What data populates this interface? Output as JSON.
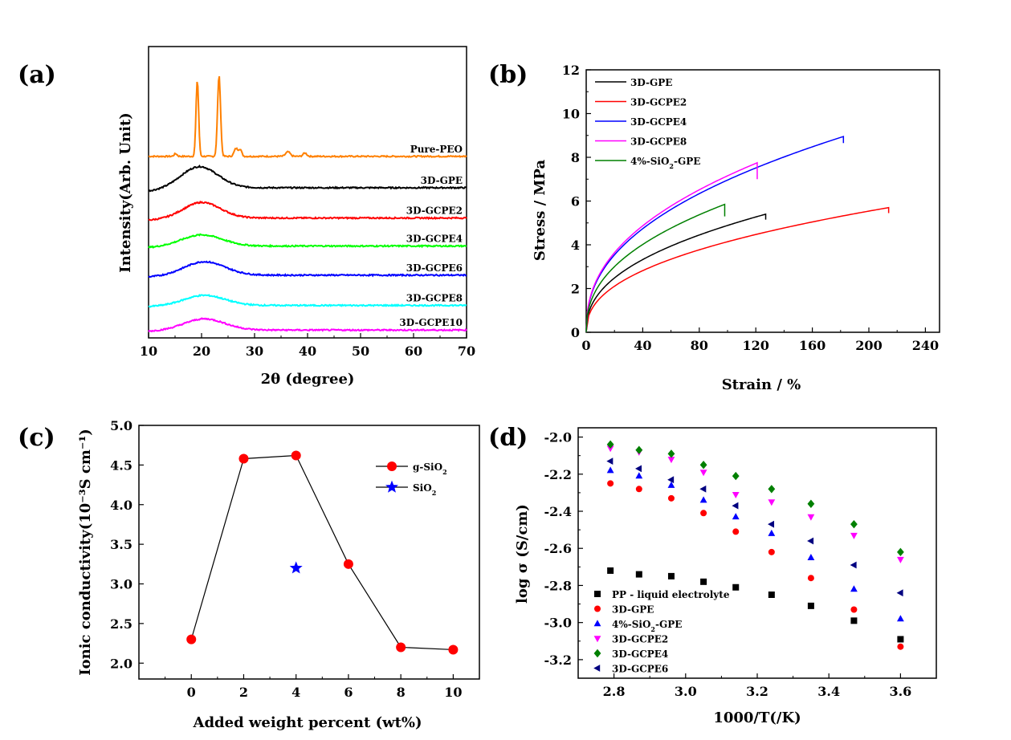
{
  "chart_data": [
    {
      "id": "a",
      "panel_label": "(a)",
      "type": "line",
      "xlabel": "2θ (degree)",
      "ylabel": "Intensity(Arb. Unit)",
      "xlim": [
        10,
        70
      ],
      "xticks": [
        "10",
        "20",
        "30",
        "40",
        "50",
        "60",
        "70"
      ],
      "ylim": [
        0,
        13
      ],
      "series": [
        {
          "name": "Pure-PEO",
          "color": "#ff8000",
          "baseline": 8.1,
          "peaks": [
            [
              19.2,
              3.4,
              0.35
            ],
            [
              23.3,
              3.6,
              0.4
            ],
            [
              26.5,
              0.35,
              0.5
            ],
            [
              27.3,
              0.3,
              0.4
            ],
            [
              15.1,
              0.12,
              0.4
            ],
            [
              36.3,
              0.2,
              0.6
            ],
            [
              39.5,
              0.15,
              0.5
            ]
          ],
          "hump": [
            0,
            20,
            6
          ],
          "tail": 0
        },
        {
          "name": "3D-GPE",
          "color": "#000000",
          "baseline": 6.7,
          "hump": [
            0.95,
            19.5,
            5.0
          ],
          "ramp": [
            10,
            0.55
          ]
        },
        {
          "name": "3D-GCPE2",
          "color": "#ff0000",
          "baseline": 5.35,
          "hump": [
            0.7,
            20.0,
            5.0
          ],
          "ramp": [
            10,
            0.35
          ]
        },
        {
          "name": "3D-GCPE4",
          "color": "#00ff00",
          "baseline": 4.1,
          "hump": [
            0.5,
            20.0,
            5.5
          ],
          "ramp": [
            10,
            0.25
          ]
        },
        {
          "name": "3D-GCPE6",
          "color": "#0000ff",
          "baseline": 2.8,
          "hump": [
            0.6,
            20.5,
            5.5
          ],
          "ramp": [
            10,
            0.3
          ]
        },
        {
          "name": "3D-GCPE8",
          "color": "#00ffff",
          "baseline": 1.45,
          "hump": [
            0.45,
            20.5,
            5.5
          ],
          "ramp": [
            10,
            0.2
          ]
        },
        {
          "name": "3D-GCPE10",
          "color": "#ff00ff",
          "baseline": 0.35,
          "hump": [
            0.5,
            20.5,
            5.5
          ],
          "ramp": [
            10,
            0.2
          ]
        }
      ]
    },
    {
      "id": "b",
      "panel_label": "(b)",
      "type": "line",
      "xlabel": "Strain / %",
      "ylabel": "Stress / MPa",
      "xlim": [
        0,
        250
      ],
      "ylim": [
        0,
        12
      ],
      "xticks": [
        0,
        40,
        80,
        120,
        160,
        200,
        240
      ],
      "yticks": [
        0,
        2,
        4,
        6,
        8,
        10,
        12
      ],
      "series": [
        {
          "name": "3D-GPE",
          "color": "#000000",
          "end_strain": 127,
          "end_stress": 5.4,
          "drop": 0.25
        },
        {
          "name": "3D-GCPE2",
          "color": "#ff0000",
          "end_strain": 214,
          "end_stress": 5.7,
          "drop": 0.25
        },
        {
          "name": "3D-GCPE4",
          "color": "#0000ff",
          "end_strain": 182,
          "end_stress": 8.95,
          "drop": 0.3
        },
        {
          "name": "3D-GCPE8",
          "color": "#ff00ff",
          "end_strain": 121,
          "end_stress": 7.75,
          "drop": 0.75
        },
        {
          "name": "4%-SiO2-GPE",
          "color": "#008000",
          "end_strain": 98,
          "end_stress": 5.85,
          "drop": 0.55
        }
      ]
    },
    {
      "id": "c",
      "panel_label": "(c)",
      "type": "line",
      "xlabel": "Added weight percent (wt%)",
      "ylabel": "Ionic conductivity(10⁻³S cm⁻¹)",
      "xlim": [
        -2,
        11
      ],
      "ylim": [
        1.8,
        5.0
      ],
      "xticks": [
        0,
        2,
        4,
        6,
        8,
        10
      ],
      "yticks": [
        "2.0",
        "2.5",
        "3.0",
        "3.5",
        "4.0",
        "4.5",
        "5.0"
      ],
      "series": [
        {
          "name": "g-SiO2",
          "legend": "g-SiO₂",
          "color": "#ff0000",
          "marker": "circle",
          "x": [
            0,
            2,
            4,
            6,
            8,
            10
          ],
          "y": [
            2.3,
            4.58,
            4.62,
            3.25,
            2.2,
            2.17
          ]
        },
        {
          "name": "SiO2",
          "legend": "SiO₂",
          "color": "#0000ff",
          "marker": "star",
          "x": [
            4
          ],
          "y": [
            3.2
          ]
        }
      ]
    },
    {
      "id": "d",
      "panel_label": "(d)",
      "type": "scatter",
      "xlabel": "1000/T(/K)",
      "ylabel": "log σ (S/cm)",
      "xlim": [
        2.7,
        3.7
      ],
      "ylim": [
        -3.3,
        -1.95
      ],
      "xticks": [
        "2.8",
        "3.0",
        "3.2",
        "3.4",
        "3.6"
      ],
      "yticks": [
        "-2.0",
        "-2.2",
        "-2.4",
        "-2.6",
        "-2.8",
        "-3.0",
        "-3.2"
      ],
      "x": [
        2.79,
        2.87,
        2.96,
        3.05,
        3.14,
        3.24,
        3.35,
        3.47,
        3.6
      ],
      "series": [
        {
          "name": "PP - liquid electrolyte",
          "color": "#000000",
          "marker": "square",
          "y": [
            -2.72,
            -2.74,
            -2.75,
            -2.78,
            -2.81,
            -2.85,
            -2.91,
            -2.99,
            -3.09
          ]
        },
        {
          "name": "3D-GPE",
          "color": "#ff0000",
          "marker": "circle",
          "y": [
            -2.25,
            -2.28,
            -2.33,
            -2.41,
            -2.51,
            -2.62,
            -2.76,
            -2.93,
            -3.13
          ]
        },
        {
          "name": "4%-SiO2-GPE",
          "legend": "4%-SiO₂-GPE",
          "color": "#0000ff",
          "marker": "triangle-up",
          "y": [
            -2.18,
            -2.21,
            -2.26,
            -2.34,
            -2.43,
            -2.52,
            -2.65,
            -2.82,
            -2.98
          ]
        },
        {
          "name": "3D-GCPE2",
          "color": "#ff00ff",
          "marker": "triangle-down",
          "y": [
            -2.06,
            -2.08,
            -2.12,
            -2.19,
            -2.31,
            -2.35,
            -2.43,
            -2.53,
            -2.66
          ]
        },
        {
          "name": "3D-GCPE4",
          "color": "#008000",
          "marker": "diamond",
          "y": [
            -2.04,
            -2.07,
            -2.09,
            -2.15,
            -2.21,
            -2.28,
            -2.36,
            -2.47,
            -2.62
          ]
        },
        {
          "name": "3D-GCPE6",
          "color": "#000080",
          "marker": "triangle-left",
          "y": [
            -2.13,
            -2.17,
            -2.23,
            -2.28,
            -2.37,
            -2.47,
            -2.56,
            -2.69,
            -2.84
          ]
        }
      ]
    }
  ]
}
